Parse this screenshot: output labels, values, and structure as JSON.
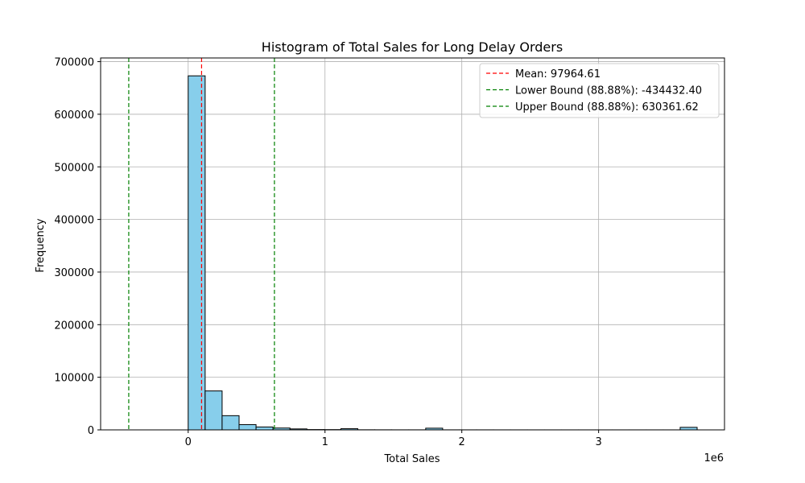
{
  "chart_data": {
    "type": "bar",
    "title": "Histogram of Total Sales for Long Delay Orders",
    "xlabel": "Total Sales",
    "ylabel": "Frequency",
    "x_offset_label": "1e6",
    "xlim": [
      -640000,
      3920000
    ],
    "ylim": [
      0,
      707000
    ],
    "x_ticks": [
      0,
      1000000,
      2000000,
      3000000
    ],
    "x_tick_labels": [
      "0",
      "1",
      "2",
      "3"
    ],
    "y_ticks": [
      0,
      100000,
      200000,
      300000,
      400000,
      500000,
      600000,
      700000
    ],
    "y_tick_labels": [
      "0",
      "100000",
      "200000",
      "300000",
      "400000",
      "500000",
      "600000",
      "700000"
    ],
    "grid": true,
    "bar_color": "#87ceeb",
    "bar_edge_color": "#000000",
    "bins": [
      {
        "x0": 0,
        "x1": 124000,
        "count": 673000
      },
      {
        "x0": 124000,
        "x1": 248000,
        "count": 74000
      },
      {
        "x0": 248000,
        "x1": 372000,
        "count": 27000
      },
      {
        "x0": 372000,
        "x1": 496000,
        "count": 10000
      },
      {
        "x0": 496000,
        "x1": 620000,
        "count": 5500
      },
      {
        "x0": 620000,
        "x1": 744000,
        "count": 3500
      },
      {
        "x0": 744000,
        "x1": 868000,
        "count": 1800
      },
      {
        "x0": 868000,
        "x1": 992000,
        "count": 600
      },
      {
        "x0": 992000,
        "x1": 1116000,
        "count": 500
      },
      {
        "x0": 1116000,
        "x1": 1240000,
        "count": 2200
      },
      {
        "x0": 1240000,
        "x1": 1364000,
        "count": 200
      },
      {
        "x0": 1364000,
        "x1": 1488000,
        "count": 150
      },
      {
        "x0": 1488000,
        "x1": 1612000,
        "count": 100
      },
      {
        "x0": 1612000,
        "x1": 1736000,
        "count": 100
      },
      {
        "x0": 1736000,
        "x1": 1860000,
        "count": 3200
      },
      {
        "x0": 1860000,
        "x1": 1984000,
        "count": 100
      },
      {
        "x0": 1984000,
        "x1": 2108000,
        "count": 80
      },
      {
        "x0": 2108000,
        "x1": 2232000,
        "count": 80
      },
      {
        "x0": 2232000,
        "x1": 2356000,
        "count": 60
      },
      {
        "x0": 2356000,
        "x1": 2480000,
        "count": 60
      },
      {
        "x0": 2480000,
        "x1": 2604000,
        "count": 50
      },
      {
        "x0": 2604000,
        "x1": 2728000,
        "count": 50
      },
      {
        "x0": 2728000,
        "x1": 2852000,
        "count": 50
      },
      {
        "x0": 2852000,
        "x1": 2976000,
        "count": 50
      },
      {
        "x0": 2976000,
        "x1": 3100000,
        "count": 50
      },
      {
        "x0": 3100000,
        "x1": 3224000,
        "count": 50
      },
      {
        "x0": 3224000,
        "x1": 3348000,
        "count": 50
      },
      {
        "x0": 3348000,
        "x1": 3472000,
        "count": 50
      },
      {
        "x0": 3472000,
        "x1": 3596000,
        "count": 50
      },
      {
        "x0": 3596000,
        "x1": 3720000,
        "count": 4800
      }
    ],
    "reference_lines": [
      {
        "label": "Mean: 97964.61",
        "x": 97964.61,
        "color": "#ff0000"
      },
      {
        "label": "Lower Bound (88.88%): -434432.40",
        "x": -434432.4,
        "color": "#008000"
      },
      {
        "label": "Upper Bound (88.88%): 630361.62",
        "x": 630361.62,
        "color": "#008000"
      }
    ],
    "legend_position": "top-right"
  }
}
